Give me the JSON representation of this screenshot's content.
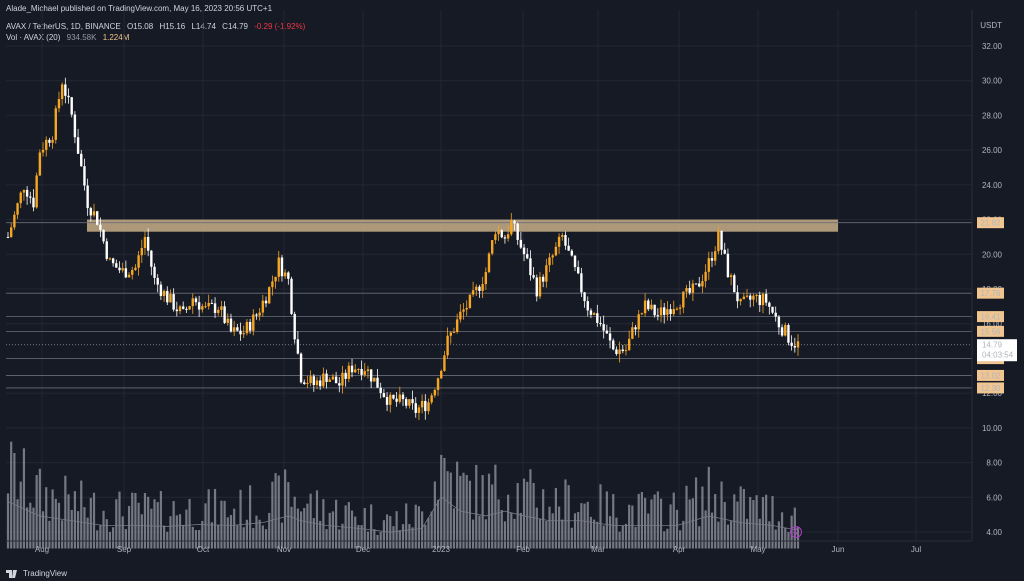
{
  "header": {
    "published": "Alade_Michael published on TradingView.com, May 16, 2023 20:56 UTC+1",
    "symbol": "AVAX / TetherUS, 1D, BINANCE",
    "open": "O15.08",
    "high": "H15.16",
    "low": "L14.74",
    "close": "C14.79",
    "change": "-0.29 (-1.92%)",
    "vol_label": "Vol · AVAX (20)",
    "vol_ma": "934.58K",
    "vol_value": "1.224M"
  },
  "brand": {
    "name": "TradingView",
    "icon": "tradingview-logo-icon"
  },
  "colors": {
    "background": "#161a25",
    "up": "#f5a623",
    "down": "#ffffff",
    "zone": "#c8b08a",
    "grid": "#232734",
    "vol_bar": "#9598a1",
    "price_tag_bg": "#f0c590",
    "current_tag_bg": "#ffffff"
  },
  "chart_data": {
    "type": "candlestick",
    "currency": "USDT",
    "y_ticks": [
      "32.00",
      "30.00",
      "28.00",
      "26.00",
      "24.00",
      "22.00",
      "20.00",
      "18.00",
      "16.00",
      "14.00",
      "12.00",
      "10.00",
      "8.00",
      "6.00",
      "4.00"
    ],
    "ylim": [
      3,
      33
    ],
    "x_ticks": [
      "Aug",
      "Sep",
      "Oct",
      "Nov",
      "Dec",
      "2023",
      "Feb",
      "Mar",
      "Apr",
      "May",
      "Jun",
      "Jul"
    ],
    "resistance_zone": [
      21.3,
      22.0
    ],
    "levels": [
      {
        "label": "21.82",
        "value": 21.82
      },
      {
        "label": "17.76",
        "value": 17.76
      },
      {
        "label": "16.41",
        "value": 16.41
      },
      {
        "label": "15.56",
        "value": 15.56
      },
      {
        "label": "13.99",
        "value": 13.99
      },
      {
        "label": "13.02",
        "value": 13.02
      },
      {
        "label": "12.30",
        "value": 12.3
      }
    ],
    "current": {
      "price": "14.79",
      "countdown": "04:03:54",
      "value": 14.79
    },
    "close_path": [
      [
        0,
        21
      ],
      [
        5,
        24
      ],
      [
        8,
        23
      ],
      [
        10,
        26
      ],
      [
        14,
        27
      ],
      [
        17,
        30
      ],
      [
        20,
        28
      ],
      [
        25,
        23
      ],
      [
        28,
        22
      ],
      [
        32,
        19.5
      ],
      [
        36,
        19
      ],
      [
        40,
        19.2
      ],
      [
        43,
        21
      ],
      [
        46,
        18.5
      ],
      [
        50,
        17.5
      ],
      [
        55,
        16.5
      ],
      [
        58,
        17.5
      ],
      [
        62,
        16.8
      ],
      [
        66,
        17
      ],
      [
        70,
        15.5
      ],
      [
        74,
        15.5
      ],
      [
        78,
        16.5
      ],
      [
        82,
        18
      ],
      [
        85,
        19.5
      ],
      [
        88,
        18.5
      ],
      [
        90,
        15.5
      ],
      [
        92,
        13
      ],
      [
        96,
        12.5
      ],
      [
        100,
        13
      ],
      [
        104,
        12.5
      ],
      [
        108,
        13.5
      ],
      [
        112,
        13.5
      ],
      [
        116,
        12.5
      ],
      [
        120,
        11.5
      ],
      [
        124,
        11.5
      ],
      [
        128,
        11
      ],
      [
        132,
        11.5
      ],
      [
        135,
        13
      ],
      [
        138,
        15
      ],
      [
        142,
        16.5
      ],
      [
        146,
        17.5
      ],
      [
        150,
        19
      ],
      [
        153,
        21.5
      ],
      [
        156,
        21
      ],
      [
        158,
        21.8
      ],
      [
        162,
        20
      ],
      [
        166,
        18
      ],
      [
        170,
        19.5
      ],
      [
        174,
        21
      ],
      [
        178,
        19
      ],
      [
        182,
        17
      ],
      [
        186,
        16
      ],
      [
        190,
        14.5
      ],
      [
        194,
        14.5
      ],
      [
        197,
        16
      ],
      [
        200,
        17
      ],
      [
        204,
        16.5
      ],
      [
        208,
        17
      ],
      [
        212,
        17.5
      ],
      [
        216,
        18
      ],
      [
        220,
        19.5
      ],
      [
        223,
        21
      ],
      [
        226,
        19
      ],
      [
        230,
        17
      ],
      [
        234,
        17.5
      ],
      [
        238,
        17.3
      ],
      [
        242,
        16
      ],
      [
        246,
        15
      ],
      [
        248,
        14.8
      ]
    ],
    "volume_profile": [
      [
        0,
        8
      ],
      [
        10,
        6.5
      ],
      [
        20,
        6
      ],
      [
        30,
        5.5
      ],
      [
        40,
        5.5
      ],
      [
        50,
        5.4
      ],
      [
        60,
        5.6
      ],
      [
        70,
        5.5
      ],
      [
        80,
        5.8
      ],
      [
        88,
        6.5
      ],
      [
        92,
        6
      ],
      [
        100,
        5.5
      ],
      [
        110,
        5.2
      ],
      [
        120,
        4.8
      ],
      [
        130,
        5.2
      ],
      [
        136,
        8.5
      ],
      [
        142,
        7
      ],
      [
        150,
        6.5
      ],
      [
        156,
        7
      ],
      [
        162,
        6.5
      ],
      [
        170,
        6
      ],
      [
        180,
        6
      ],
      [
        190,
        5.5
      ],
      [
        200,
        5.5
      ],
      [
        210,
        5.5
      ],
      [
        220,
        6.5
      ],
      [
        230,
        5.8
      ],
      [
        240,
        5.5
      ],
      [
        248,
        5
      ]
    ]
  }
}
